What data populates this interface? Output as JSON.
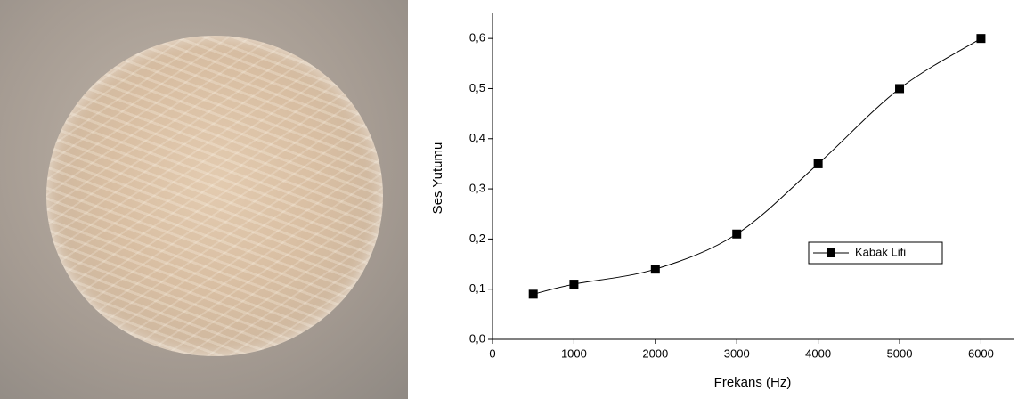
{
  "chart_data": {
    "type": "line",
    "x_label": "Frekans (Hz)",
    "y_label": "Ses Yutumu",
    "x": [
      500,
      1000,
      2000,
      3000,
      4000,
      5000,
      6000
    ],
    "series": [
      {
        "name": "Kabak Lifi",
        "color": "#000000",
        "values": [
          0.09,
          0.11,
          0.14,
          0.21,
          0.35,
          0.5,
          0.6
        ]
      }
    ],
    "xlim": [
      0,
      6400
    ],
    "ylim": [
      0,
      0.65
    ],
    "xticks": [
      0,
      1000,
      2000,
      3000,
      4000,
      5000,
      6000
    ],
    "yticks": [
      {
        "value": 0,
        "label": "0,0"
      },
      {
        "value": 0.1,
        "label": "0,1"
      },
      {
        "value": 0.2,
        "label": "0,2"
      },
      {
        "value": 0.3,
        "label": "0,3"
      },
      {
        "value": 0.4,
        "label": "0,4"
      },
      {
        "value": 0.5,
        "label": "0,5"
      },
      {
        "value": 0.6,
        "label": "0,6"
      }
    ],
    "grid": false,
    "marker": "square",
    "smooth": true,
    "legend": "right"
  }
}
